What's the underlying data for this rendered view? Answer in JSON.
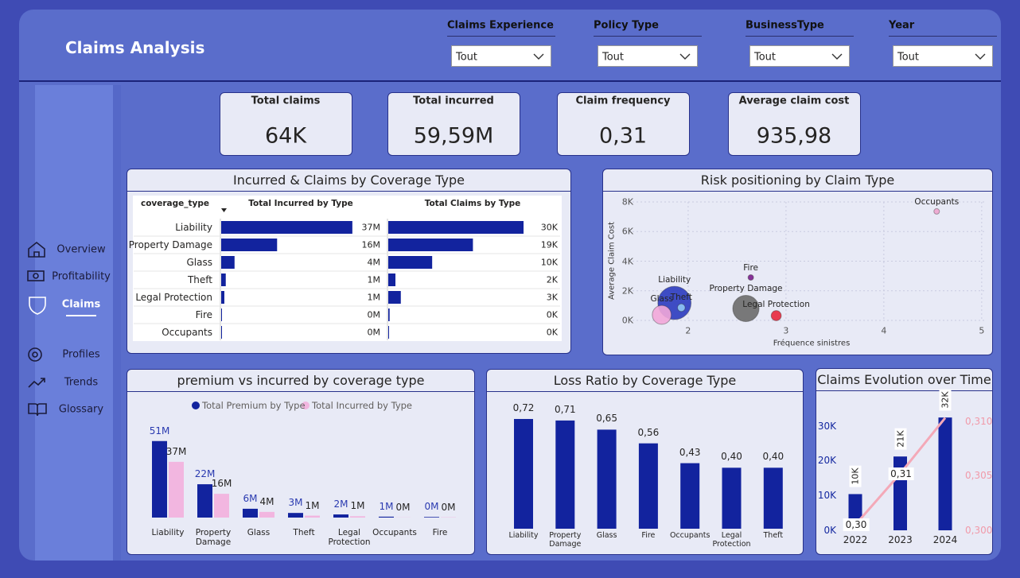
{
  "header": {
    "title": "Claims Analysis"
  },
  "filters": [
    {
      "label": "Claims Experience",
      "value": "Tout"
    },
    {
      "label": "Policy Type",
      "value": "Tout"
    },
    {
      "label": "BusinessType",
      "value": "Tout"
    },
    {
      "label": "Year",
      "value": "Tout"
    }
  ],
  "nav": [
    {
      "label": "Overview"
    },
    {
      "label": "Profitability"
    },
    {
      "label": "Claims",
      "active": true
    },
    {
      "label": "Profiles"
    },
    {
      "label": "Trends"
    },
    {
      "label": "Glossary"
    }
  ],
  "kpis": [
    {
      "label": "Total claims",
      "value": "64K"
    },
    {
      "label": "Total incurred",
      "value": "59,59M"
    },
    {
      "label": "Claim frequency",
      "value": "0,31"
    },
    {
      "label": "Average claim cost",
      "value": "935,98"
    }
  ],
  "chart_data": [
    {
      "type": "table_bar",
      "title": "Incurred & Claims by Coverage Type",
      "category_label": "coverage_type",
      "categories": [
        "Liability",
        "Property Damage",
        "Glass",
        "Theft",
        "Legal Protection",
        "Fire",
        "Occupants"
      ],
      "series": [
        {
          "name": "Total Incurred by Type",
          "color": "#12239e",
          "values": [
            37.3,
            15.9,
            3.8,
            1.3,
            0.9,
            0.2,
            0.1
          ],
          "value_labels": [
            "37M",
            "16M",
            "4M",
            "1M",
            "1M",
            "0M",
            "0M"
          ]
        },
        {
          "name": "Total Claims by Type",
          "color": "#12239e",
          "values": [
            30.2,
            18.9,
            9.8,
            1.6,
            2.8,
            0.3,
            0.1
          ],
          "value_labels": [
            "30K",
            "19K",
            "10K",
            "2K",
            "3K",
            "0K",
            "0K"
          ]
        }
      ]
    },
    {
      "type": "scatter",
      "title": "Risk positioning by Claim Type",
      "x_label": "Fréquence sinistres",
      "y_label": "Average Claim Cost",
      "categories": [
        "Liability",
        "Glass",
        "Theft",
        "Fire",
        "Property Damage",
        "Legal Protection",
        "Occupants"
      ],
      "x": [
        1.86,
        1.73,
        1.93,
        2.64,
        2.59,
        2.9,
        4.54
      ],
      "values": [
        1180,
        375,
        860,
        2900,
        805,
        320,
        7360
      ],
      "sizes": [
        30.2,
        9.8,
        1.6,
        0.3,
        18.9,
        2.8,
        0.1
      ],
      "colors": [
        "#2b3bbf",
        "#f2a7d9",
        "#8fc7f7",
        "#7b1e8e",
        "#6b6b6b",
        "#e8283d",
        "#eea5cf"
      ],
      "xlim": [
        1.35,
        5.05
      ],
      "xticks": [
        2,
        3,
        4,
        5
      ],
      "ylim": [
        0,
        8000
      ],
      "yticks": [
        {
          "value": 0,
          "label": "0K"
        },
        {
          "value": 2000,
          "label": "2K"
        },
        {
          "value": 4000,
          "label": "4K"
        },
        {
          "value": 6000,
          "label": "6K"
        },
        {
          "value": 8000,
          "label": "8K"
        }
      ],
      "grid": true
    },
    {
      "type": "grouped_bar",
      "title": "premium vs incurred by coverage type",
      "categories": [
        "Liability",
        "Property Damage",
        "Glass",
        "Theft",
        "Legal Protection",
        "Occupants",
        "Fire"
      ],
      "series": [
        {
          "name": "Total Premium by Type",
          "color": "#12239e",
          "values": [
            51.2,
            22.3,
            5.9,
            3.1,
            2.1,
            0.6,
            0.4
          ],
          "value_labels": [
            "51M",
            "22M",
            "6M",
            "3M",
            "2M",
            "1M",
            "0M"
          ]
        },
        {
          "name": "Total Incurred by Type",
          "color": "#f2b6e0",
          "values": [
            37.3,
            15.9,
            3.8,
            1.3,
            0.9,
            0.1,
            0.2
          ],
          "value_labels": [
            "37M",
            "16M",
            "4M",
            "1M",
            "1M",
            "0M",
            "0M"
          ]
        }
      ],
      "legend": "top"
    },
    {
      "type": "bar",
      "title": "Loss Ratio by Coverage Type",
      "color": "#12239e",
      "categories": [
        "Liability",
        "Property Damage",
        "Glass",
        "Fire",
        "Occupants",
        "Legal Protection",
        "Theft"
      ],
      "values": [
        0.72,
        0.71,
        0.65,
        0.56,
        0.43,
        0.4,
        0.4
      ],
      "value_labels": [
        "0,72",
        "0,71",
        "0,65",
        "0,56",
        "0,43",
        "0,40",
        "0,40"
      ]
    },
    {
      "type": "bar_line",
      "title": "Claims Evolution over Time",
      "categories": [
        "2022",
        "2023",
        "2024"
      ],
      "series": [
        {
          "type": "bar",
          "color": "#12239e",
          "values": [
            10400,
            21200,
            32400
          ],
          "value_labels": [
            "10K",
            "21K",
            "32K"
          ]
        },
        {
          "type": "line",
          "axis": "y2",
          "color": "#f4a9b8",
          "values": [
            0.3005,
            0.3052,
            0.3103
          ],
          "value_labels": [
            "0,30",
            "0,31",
            null
          ]
        }
      ],
      "ylim": [
        0,
        37000
      ],
      "yticks": [
        {
          "value": 0,
          "label": "0K"
        },
        {
          "value": 10000,
          "label": "10K"
        },
        {
          "value": 20000,
          "label": "20K"
        },
        {
          "value": 30000,
          "label": "30K"
        }
      ],
      "y2lim": [
        0.3,
        0.3118
      ],
      "y2ticks": [
        {
          "value": 0.3,
          "label": "0,300"
        },
        {
          "value": 0.305,
          "label": "0,305"
        },
        {
          "value": 0.31,
          "label": "0,310"
        }
      ]
    }
  ]
}
